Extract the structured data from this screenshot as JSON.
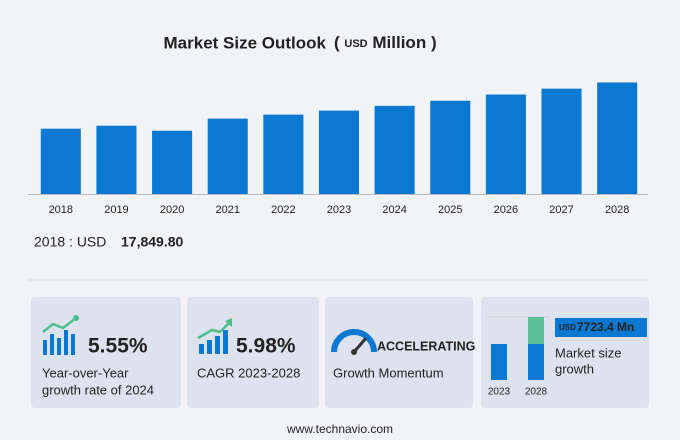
{
  "chart_data": {
    "type": "bar",
    "title": "Market Size Outlook",
    "unit_parts": [
      "(",
      "USD",
      "Million",
      ")"
    ],
    "categories": [
      "2018",
      "2019",
      "2020",
      "2021",
      "2022",
      "2023",
      "2024",
      "2025",
      "2026",
      "2027",
      "2028"
    ],
    "values": [
      17849.8,
      18670,
      17300,
      20600,
      21700,
      22800,
      24100,
      25500,
      27200,
      28800,
      30500
    ],
    "color": "#0b78d1",
    "ylim": [
      0,
      35000
    ]
  },
  "summary": {
    "label": "2018 : USD",
    "value": "17,849.80"
  },
  "cards": [
    {
      "value": "5.55%",
      "lines": [
        "Year-over-Year",
        "growth rate of 2024"
      ]
    },
    {
      "value": "5.98%",
      "lines": [
        "CAGR 2023-2028"
      ]
    },
    {
      "value": "ACCELERATING",
      "lines": [
        "Growth Momentum"
      ]
    },
    {
      "badge_unit": "USD",
      "badge_value": "7723.4 Mn",
      "lines": [
        "Market size",
        "growth"
      ],
      "years": [
        "2023",
        "2028"
      ]
    }
  ],
  "footer": "www.technavio.com"
}
